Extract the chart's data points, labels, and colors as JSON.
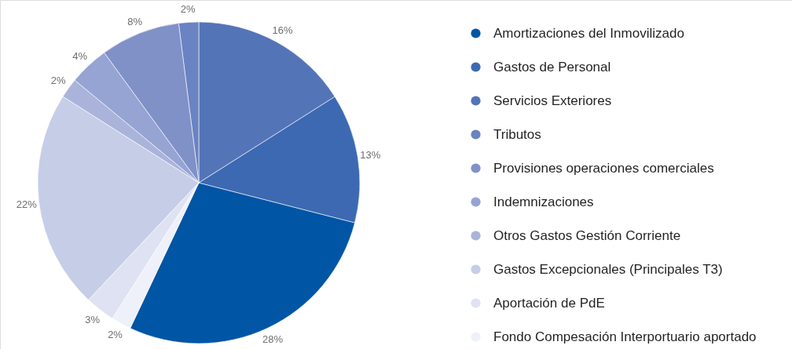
{
  "chart_data": {
    "type": "pie",
    "categories": [
      "Amortizaciones del Inmovilizado",
      "Gastos de Personal",
      "Servicios Exteriores",
      "Tributos",
      "Provisiones operaciones comerciales",
      "Indemnizaciones",
      "Otros Gastos Gestión Corriente",
      "Gastos Excepcionales (Principales T3)",
      "Aportación de PdE",
      "Fondo Compesación Interportuario aportado"
    ],
    "values": [
      28,
      13,
      16,
      2,
      8,
      4,
      2,
      22,
      3,
      2
    ],
    "colors": [
      "#0055a5",
      "#3c69b2",
      "#5474b8",
      "#6a83c2",
      "#8091c8",
      "#95a4d3",
      "#aab4db",
      "#c6cde7",
      "#dfe2f2",
      "#eef1f9"
    ],
    "value_labels": [
      "28%",
      "13%",
      "16%",
      "2%",
      "8%",
      "4%",
      "2%",
      "22%",
      "3%",
      "2%"
    ],
    "legend": "right"
  }
}
